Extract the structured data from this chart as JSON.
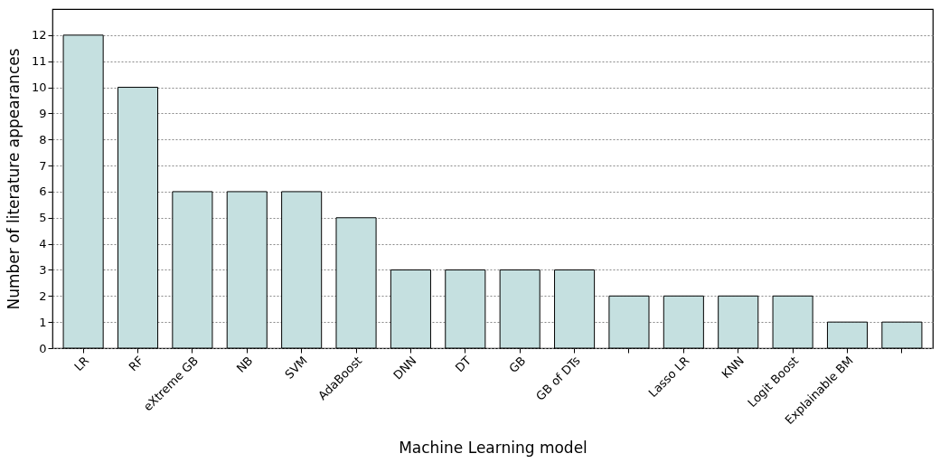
{
  "chart_data": {
    "type": "bar",
    "xlabel": "Machine Learning model",
    "ylabel": "Number of literature appearances",
    "categories": [
      "LR",
      "RF",
      "eXtreme GB",
      "NB",
      "SVM",
      "AdaBoost",
      "DNN",
      "DT",
      "GB",
      "GB of DTs",
      null,
      "Lasso LR",
      "KNN",
      "Logit Boost",
      "Explainable BM",
      null
    ],
    "values": [
      12,
      10,
      6,
      6,
      6,
      5,
      3,
      3,
      3,
      3,
      2,
      2,
      2,
      2,
      1,
      1
    ],
    "color": "#c5e0e0",
    "ylim": [
      0,
      13
    ],
    "yticks": [
      0,
      1,
      2,
      3,
      4,
      5,
      6,
      7,
      8,
      9,
      10,
      11,
      12
    ],
    "grid": "y"
  }
}
